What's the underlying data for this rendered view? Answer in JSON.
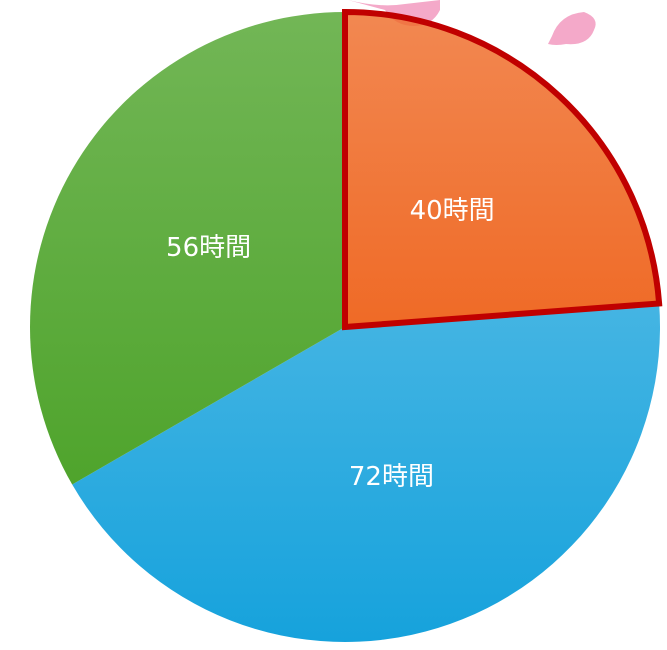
{
  "chart_data": {
    "type": "pie",
    "values": [
      40,
      72,
      56
    ],
    "value_labels": [
      "40時間",
      "72時間",
      "56時間"
    ],
    "colors": [
      "#ef6a26",
      "#16a2dc",
      "#4fa42c"
    ],
    "edgecolors": [
      "#c00000",
      "none",
      "none"
    ],
    "startangle": 90,
    "direction": "clockwise"
  }
}
